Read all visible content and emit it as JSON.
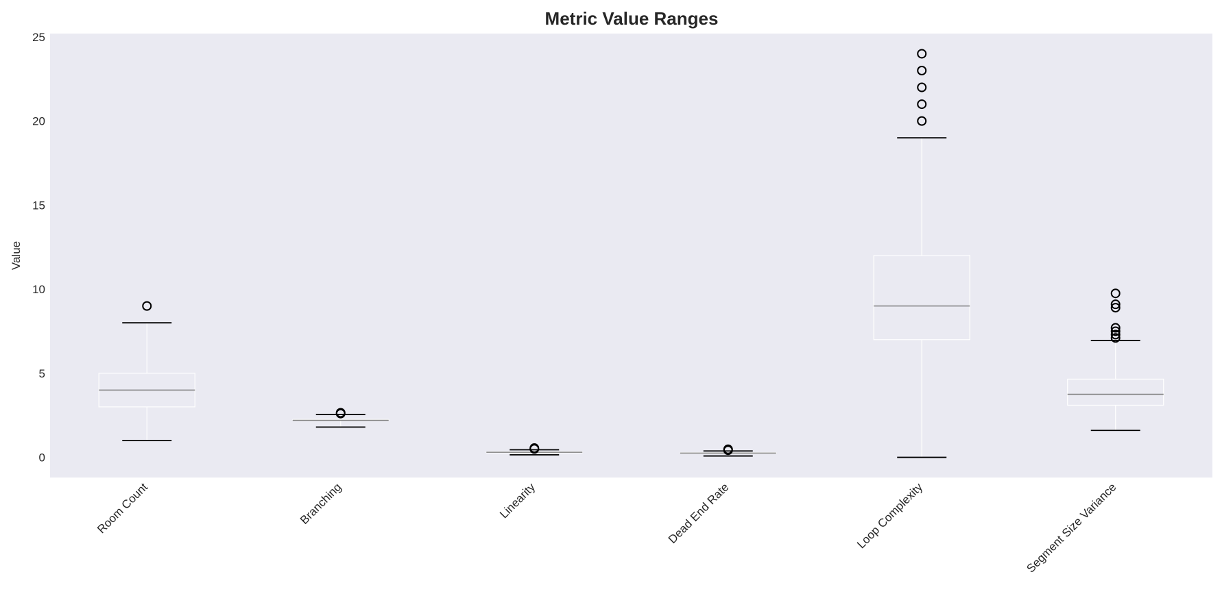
{
  "chart_data": {
    "type": "box",
    "title": "Metric Value Ranges",
    "xlabel": "",
    "ylabel": "Value",
    "ylim": [
      -1.2,
      25.2
    ],
    "yticks": [
      0,
      5,
      10,
      15,
      20,
      25
    ],
    "grid": false,
    "colors": {
      "plot_background": "#eaeaf2",
      "box_edge": "#ffffff",
      "median": "#808080",
      "cap": "#000000",
      "flier": "#000000"
    },
    "categories": [
      "Room Count",
      "Branching",
      "Linearity",
      "Dead End Rate",
      "Loop Complexity",
      "Segment Size Variance"
    ],
    "boxes": [
      {
        "label": "Room Count",
        "whisker_low": 1.0,
        "q1": 3.0,
        "median": 4.0,
        "q3": 5.0,
        "whisker_high": 8.0,
        "outliers": [
          9.0
        ]
      },
      {
        "label": "Branching",
        "whisker_low": 1.8,
        "q1": 2.2,
        "median": 2.2,
        "q3": 2.25,
        "whisker_high": 2.55,
        "outliers": [
          2.6,
          2.65
        ]
      },
      {
        "label": "Linearity",
        "whisker_low": 0.15,
        "q1": 0.27,
        "median": 0.3,
        "q3": 0.33,
        "whisker_high": 0.45,
        "outliers": [
          0.5,
          0.55
        ]
      },
      {
        "label": "Dead End Rate",
        "whisker_low": 0.08,
        "q1": 0.22,
        "median": 0.25,
        "q3": 0.28,
        "whisker_high": 0.38,
        "outliers": [
          0.42,
          0.48
        ]
      },
      {
        "label": "Loop Complexity",
        "whisker_low": 0.0,
        "q1": 7.0,
        "median": 9.0,
        "q3": 12.0,
        "whisker_high": 19.0,
        "outliers": [
          20,
          21,
          22,
          23,
          24
        ]
      },
      {
        "label": "Segment Size Variance",
        "whisker_low": 1.6,
        "q1": 3.1,
        "median": 3.75,
        "q3": 4.65,
        "whisker_high": 6.95,
        "outliers": [
          7.1,
          7.3,
          7.5,
          7.7,
          8.9,
          9.1,
          9.75
        ]
      }
    ]
  }
}
